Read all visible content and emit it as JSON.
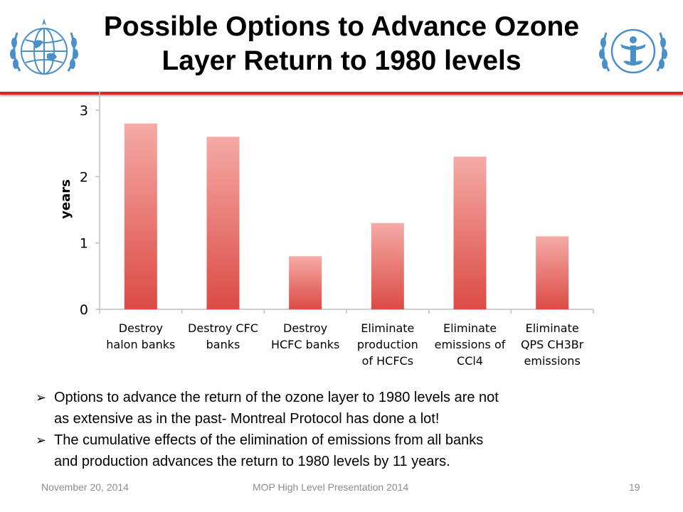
{
  "slide": {
    "title_line1": "Possible Options to Advance Ozone",
    "title_line2": "Layer Return to 1980 levels",
    "accent_color": "#d32a22",
    "logos": [
      "wmo-emblem-icon",
      "unep-emblem-icon"
    ],
    "logo_color": "#4a90c8"
  },
  "chart_data": {
    "type": "bar",
    "ylabel": "years",
    "xlabel": "",
    "ylim": [
      0,
      3
    ],
    "yticks": [
      0,
      1,
      2,
      3
    ],
    "grid": false,
    "legend": "none",
    "bar_color_top": "#f5aaa6",
    "bar_color_bottom": "#dc4b44",
    "categories": [
      [
        "Destroy",
        "halon banks"
      ],
      [
        "Destroy CFC",
        "banks"
      ],
      [
        "Destroy",
        "HCFC banks"
      ],
      [
        "Eliminate",
        "production",
        "of HCFCs"
      ],
      [
        "Eliminate",
        "emissions of",
        "CCl4"
      ],
      [
        "Eliminate",
        "QPS CH3Br",
        "emissions"
      ]
    ],
    "values": [
      2.8,
      2.6,
      0.8,
      1.3,
      2.3,
      1.1
    ]
  },
  "bullets": [
    {
      "marker": "➢",
      "line1": "Options to advance the return of the ozone layer to 1980 levels are not",
      "line2": "as extensive as in the past- Montreal Protocol has done a lot!"
    },
    {
      "marker": "➢",
      "line1": "The cumulative effects of the elimination of emissions from all banks",
      "line2": "and production advances the return to 1980 levels by 11 years."
    }
  ],
  "footer": {
    "date": "November 20, 2014",
    "center": "MOP High Level Presentation 2014",
    "page": "19"
  }
}
